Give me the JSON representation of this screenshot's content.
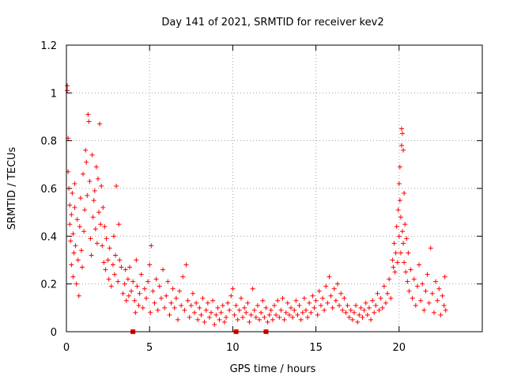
{
  "chart_data": {
    "type": "scatter",
    "title": "Day 141 of 2021, SRMTID for receiver kev2",
    "xlabel": "GPS time / hours",
    "ylabel": "SRMTID / TECUs",
    "xlim": [
      0,
      25
    ],
    "ylim": [
      0,
      1.2
    ],
    "xticks": [
      0,
      5,
      10,
      15,
      20
    ],
    "yticks": [
      0,
      0.2,
      0.4,
      0.6,
      0.8,
      1,
      1.2
    ],
    "xtick_labels": [
      "0",
      "5",
      "10",
      "15",
      "20"
    ],
    "ytick_labels": [
      "0",
      "0.2",
      "0.4",
      "0.6",
      "0.8",
      "1",
      "1.2"
    ],
    "grid": true,
    "marker": "+",
    "color": "#ff0000",
    "series": [
      {
        "name": "SRMTID",
        "points": [
          [
            0.05,
            1.03
          ],
          [
            0.05,
            1.01
          ],
          [
            0.1,
            0.81
          ],
          [
            0.1,
            0.67
          ],
          [
            0.15,
            0.6
          ],
          [
            0.2,
            0.53
          ],
          [
            0.2,
            0.45
          ],
          [
            0.25,
            0.38
          ],
          [
            0.3,
            0.49
          ],
          [
            0.3,
            0.28
          ],
          [
            0.35,
            0.58
          ],
          [
            0.4,
            0.41
          ],
          [
            0.4,
            0.23
          ],
          [
            0.45,
            0.33
          ],
          [
            0.5,
            0.62
          ],
          [
            0.5,
            0.52
          ],
          [
            0.55,
            0.36
          ],
          [
            0.6,
            0.2
          ],
          [
            0.65,
            0.47
          ],
          [
            0.7,
            0.3
          ],
          [
            0.75,
            0.15
          ],
          [
            0.8,
            0.44
          ],
          [
            0.85,
            0.56
          ],
          [
            0.9,
            0.34
          ],
          [
            0.95,
            0.27
          ],
          [
            1.0,
            0.66
          ],
          [
            1.05,
            0.42
          ],
          [
            1.1,
            0.51
          ],
          [
            1.15,
            0.76
          ],
          [
            1.2,
            0.71
          ],
          [
            1.25,
            0.57
          ],
          [
            1.3,
            0.91
          ],
          [
            1.35,
            0.88
          ],
          [
            1.4,
            0.63
          ],
          [
            1.45,
            0.39
          ],
          [
            1.5,
            0.32
          ],
          [
            1.55,
            0.74
          ],
          [
            1.6,
            0.48
          ],
          [
            1.65,
            0.55
          ],
          [
            1.7,
            0.59
          ],
          [
            1.75,
            0.43
          ],
          [
            1.8,
            0.69
          ],
          [
            1.85,
            0.37
          ],
          [
            1.9,
            0.64
          ],
          [
            1.95,
            0.5
          ],
          [
            2.0,
            0.87
          ],
          [
            2.05,
            0.45
          ],
          [
            2.1,
            0.61
          ],
          [
            2.15,
            0.36
          ],
          [
            2.2,
            0.52
          ],
          [
            2.25,
            0.29
          ],
          [
            2.3,
            0.44
          ],
          [
            2.35,
            0.26
          ],
          [
            2.4,
            0.39
          ],
          [
            2.5,
            0.3
          ],
          [
            2.55,
            0.22
          ],
          [
            2.6,
            0.35
          ],
          [
            2.7,
            0.19
          ],
          [
            2.8,
            0.28
          ],
          [
            2.85,
            0.4
          ],
          [
            2.9,
            0.24
          ],
          [
            2.95,
            0.32
          ],
          [
            3.0,
            0.61
          ],
          [
            3.1,
            0.21
          ],
          [
            3.15,
            0.45
          ],
          [
            3.2,
            0.3
          ],
          [
            3.3,
            0.27
          ],
          [
            3.4,
            0.16
          ],
          [
            3.5,
            0.2
          ],
          [
            3.55,
            0.26
          ],
          [
            3.6,
            0.13
          ],
          [
            3.7,
            0.22
          ],
          [
            3.75,
            0.15
          ],
          [
            3.8,
            0.27
          ],
          [
            3.9,
            0.17
          ],
          [
            4.0,
            0.21
          ],
          [
            4.1,
            0.13
          ],
          [
            4.15,
            0.08
          ],
          [
            4.2,
            0.3
          ],
          [
            4.25,
            0.19
          ],
          [
            4.35,
            0.11
          ],
          [
            4.4,
            0.16
          ],
          [
            4.5,
            0.24
          ],
          [
            4.6,
            0.1
          ],
          [
            4.7,
            0.18
          ],
          [
            4.8,
            0.14
          ],
          [
            4.9,
            0.21
          ],
          [
            5.0,
            0.28
          ],
          [
            5.05,
            0.08
          ],
          [
            5.1,
            0.36
          ],
          [
            5.2,
            0.17
          ],
          [
            5.3,
            0.12
          ],
          [
            5.4,
            0.22
          ],
          [
            5.5,
            0.09
          ],
          [
            5.6,
            0.19
          ],
          [
            5.7,
            0.14
          ],
          [
            5.8,
            0.26
          ],
          [
            5.9,
            0.1
          ],
          [
            6.0,
            0.15
          ],
          [
            6.1,
            0.21
          ],
          [
            6.2,
            0.07
          ],
          [
            6.3,
            0.12
          ],
          [
            6.4,
            0.18
          ],
          [
            6.5,
            0.1
          ],
          [
            6.6,
            0.14
          ],
          [
            6.7,
            0.05
          ],
          [
            6.8,
            0.17
          ],
          [
            6.9,
            0.11
          ],
          [
            7.0,
            0.23
          ],
          [
            7.1,
            0.09
          ],
          [
            7.2,
            0.28
          ],
          [
            7.3,
            0.13
          ],
          [
            7.4,
            0.06
          ],
          [
            7.5,
            0.11
          ],
          [
            7.6,
            0.16
          ],
          [
            7.7,
            0.08
          ],
          [
            7.8,
            0.12
          ],
          [
            7.9,
            0.05
          ],
          [
            8.0,
            0.1
          ],
          [
            8.1,
            0.07
          ],
          [
            8.2,
            0.14
          ],
          [
            8.3,
            0.04
          ],
          [
            8.4,
            0.09
          ],
          [
            8.5,
            0.12
          ],
          [
            8.6,
            0.06
          ],
          [
            8.7,
            0.08
          ],
          [
            8.8,
            0.13
          ],
          [
            8.9,
            0.03
          ],
          [
            9.0,
            0.07
          ],
          [
            9.1,
            0.1
          ],
          [
            9.2,
            0.05
          ],
          [
            9.3,
            0.08
          ],
          [
            9.4,
            0.11
          ],
          [
            9.5,
            0.04
          ],
          [
            9.6,
            0.06
          ],
          [
            9.7,
            0.12
          ],
          [
            9.8,
            0.09
          ],
          [
            9.9,
            0.15
          ],
          [
            10.0,
            0.18
          ],
          [
            10.1,
            0.07
          ],
          [
            10.2,
            0.11
          ],
          [
            10.3,
            0.05
          ],
          [
            10.4,
            0.09
          ],
          [
            10.5,
            0.14
          ],
          [
            10.6,
            0.06
          ],
          [
            10.7,
            0.1
          ],
          [
            10.8,
            0.08
          ],
          [
            10.9,
            0.12
          ],
          [
            11.0,
            0.04
          ],
          [
            11.1,
            0.07
          ],
          [
            11.2,
            0.18
          ],
          [
            11.3,
            0.09
          ],
          [
            11.4,
            0.06
          ],
          [
            11.5,
            0.11
          ],
          [
            11.6,
            0.05
          ],
          [
            11.7,
            0.08
          ],
          [
            11.8,
            0.13
          ],
          [
            11.9,
            0.06
          ],
          [
            12.0,
            0.1
          ],
          [
            12.1,
            0.04
          ],
          [
            12.2,
            0.07
          ],
          [
            12.3,
            0.09
          ],
          [
            12.4,
            0.05
          ],
          [
            12.5,
            0.11
          ],
          [
            12.6,
            0.07
          ],
          [
            12.7,
            0.13
          ],
          [
            12.8,
            0.06
          ],
          [
            12.9,
            0.09
          ],
          [
            13.0,
            0.14
          ],
          [
            13.1,
            0.05
          ],
          [
            13.2,
            0.08
          ],
          [
            13.3,
            0.12
          ],
          [
            13.4,
            0.07
          ],
          [
            13.5,
            0.1
          ],
          [
            13.6,
            0.06
          ],
          [
            13.7,
            0.09
          ],
          [
            13.8,
            0.13
          ],
          [
            13.9,
            0.07
          ],
          [
            14.0,
            0.11
          ],
          [
            14.1,
            0.05
          ],
          [
            14.2,
            0.08
          ],
          [
            14.3,
            0.14
          ],
          [
            14.4,
            0.09
          ],
          [
            14.5,
            0.06
          ],
          [
            14.6,
            0.12
          ],
          [
            14.7,
            0.08
          ],
          [
            14.8,
            0.15
          ],
          [
            14.9,
            0.1
          ],
          [
            15.0,
            0.13
          ],
          [
            15.1,
            0.07
          ],
          [
            15.2,
            0.17
          ],
          [
            15.3,
            0.11
          ],
          [
            15.4,
            0.14
          ],
          [
            15.5,
            0.09
          ],
          [
            15.6,
            0.19
          ],
          [
            15.7,
            0.12
          ],
          [
            15.8,
            0.23
          ],
          [
            15.9,
            0.15
          ],
          [
            16.0,
            0.1
          ],
          [
            16.1,
            0.18
          ],
          [
            16.2,
            0.13
          ],
          [
            16.3,
            0.2
          ],
          [
            16.4,
            0.11
          ],
          [
            16.5,
            0.16
          ],
          [
            16.6,
            0.09
          ],
          [
            16.7,
            0.14
          ],
          [
            16.8,
            0.08
          ],
          [
            16.9,
            0.11
          ],
          [
            17.0,
            0.06
          ],
          [
            17.1,
            0.09
          ],
          [
            17.2,
            0.05
          ],
          [
            17.3,
            0.08
          ],
          [
            17.4,
            0.11
          ],
          [
            17.5,
            0.04
          ],
          [
            17.6,
            0.07
          ],
          [
            17.7,
            0.1
          ],
          [
            17.8,
            0.06
          ],
          [
            17.9,
            0.09
          ],
          [
            18.0,
            0.12
          ],
          [
            18.1,
            0.07
          ],
          [
            18.2,
            0.1
          ],
          [
            18.3,
            0.05
          ],
          [
            18.4,
            0.13
          ],
          [
            18.5,
            0.08
          ],
          [
            18.6,
            0.11
          ],
          [
            18.7,
            0.16
          ],
          [
            18.8,
            0.09
          ],
          [
            18.9,
            0.14
          ],
          [
            19.0,
            0.1
          ],
          [
            19.1,
            0.19
          ],
          [
            19.2,
            0.12
          ],
          [
            19.3,
            0.16
          ],
          [
            19.4,
            0.22
          ],
          [
            19.5,
            0.14
          ],
          [
            19.6,
            0.3
          ],
          [
            19.65,
            0.27
          ],
          [
            19.7,
            0.37
          ],
          [
            19.75,
            0.25
          ],
          [
            19.8,
            0.33
          ],
          [
            19.85,
            0.44
          ],
          [
            19.9,
            0.29
          ],
          [
            19.95,
            0.51
          ],
          [
            20.0,
            0.62
          ],
          [
            20.0,
            0.4
          ],
          [
            20.05,
            0.69
          ],
          [
            20.05,
            0.55
          ],
          [
            20.1,
            0.48
          ],
          [
            20.1,
            0.33
          ],
          [
            20.15,
            0.85
          ],
          [
            20.15,
            0.78
          ],
          [
            20.2,
            0.83
          ],
          [
            20.2,
            0.42
          ],
          [
            20.25,
            0.76
          ],
          [
            20.25,
            0.37
          ],
          [
            20.3,
            0.58
          ],
          [
            20.3,
            0.29
          ],
          [
            20.35,
            0.45
          ],
          [
            20.4,
            0.25
          ],
          [
            20.45,
            0.39
          ],
          [
            20.5,
            0.21
          ],
          [
            20.55,
            0.33
          ],
          [
            20.6,
            0.17
          ],
          [
            20.7,
            0.26
          ],
          [
            20.8,
            0.14
          ],
          [
            20.9,
            0.22
          ],
          [
            21.0,
            0.11
          ],
          [
            21.1,
            0.19
          ],
          [
            21.2,
            0.28
          ],
          [
            21.3,
            0.13
          ],
          [
            21.4,
            0.2
          ],
          [
            21.5,
            0.09
          ],
          [
            21.6,
            0.17
          ],
          [
            21.7,
            0.24
          ],
          [
            21.8,
            0.12
          ],
          [
            21.9,
            0.35
          ],
          [
            22.0,
            0.16
          ],
          [
            22.1,
            0.08
          ],
          [
            22.2,
            0.21
          ],
          [
            22.3,
            0.13
          ],
          [
            22.4,
            0.18
          ],
          [
            22.5,
            0.07
          ],
          [
            22.6,
            0.15
          ],
          [
            22.7,
            0.11
          ],
          [
            22.75,
            0.23
          ],
          [
            22.8,
            0.09
          ]
        ]
      }
    ],
    "baseline_markers": [
      4.0,
      10.2,
      12.0
    ]
  }
}
